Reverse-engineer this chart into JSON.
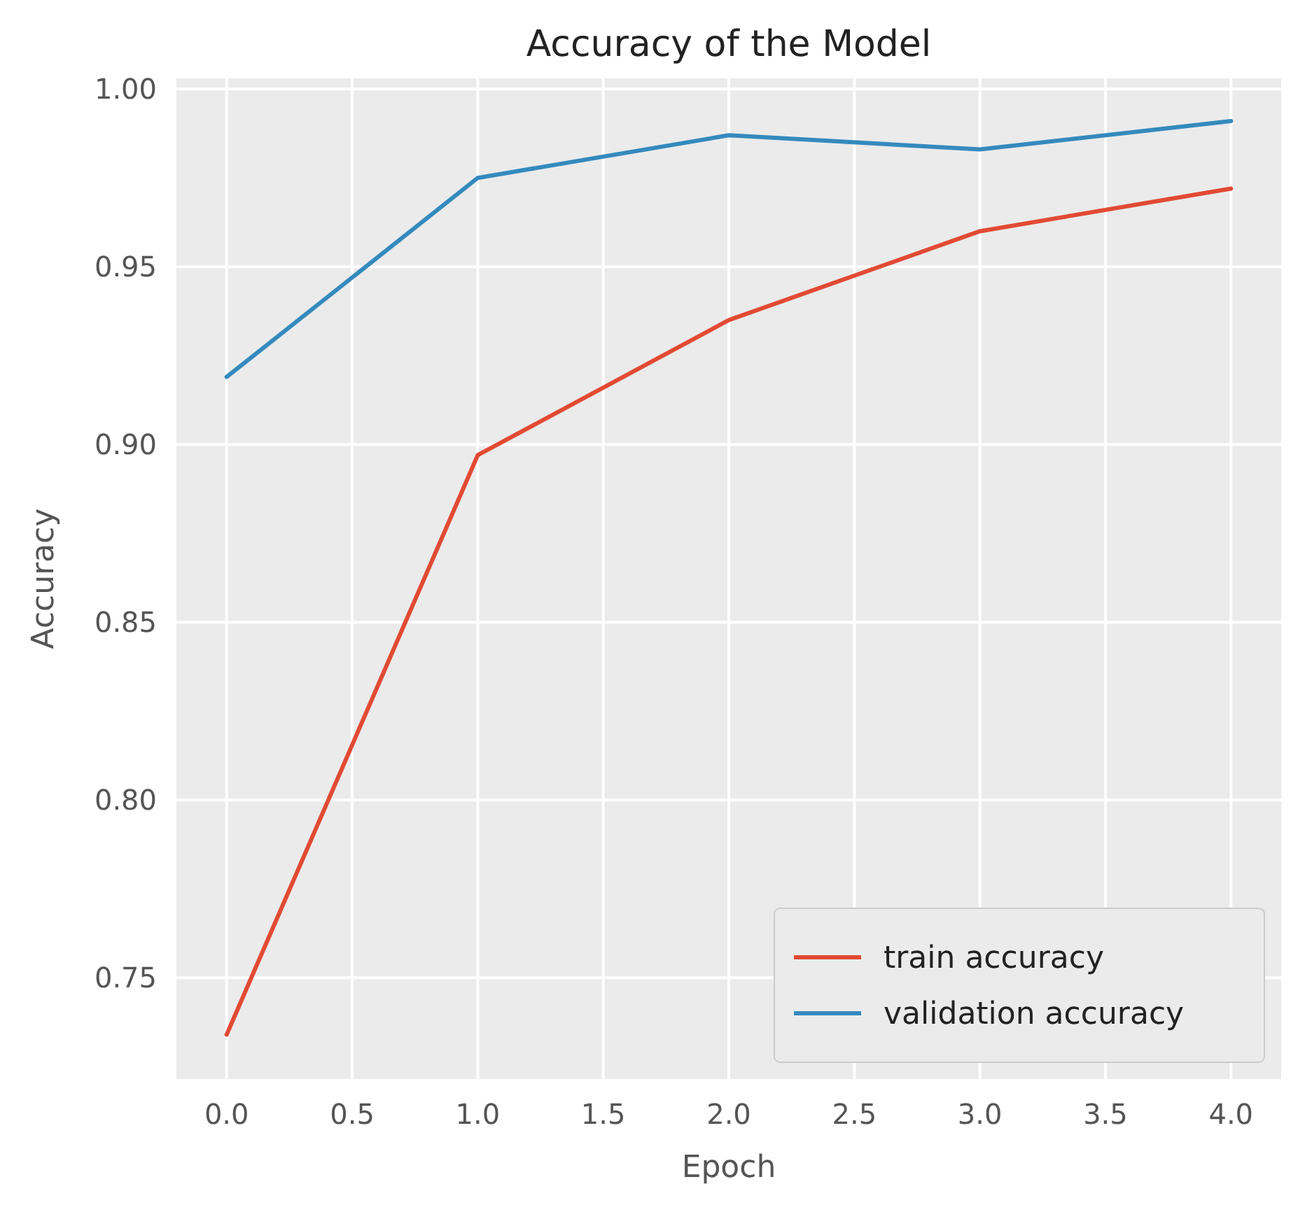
{
  "chart_data": {
    "type": "line",
    "title": "Accuracy of the Model",
    "xlabel": "Epoch",
    "ylabel": "Accuracy",
    "x": [
      0,
      1,
      2,
      3,
      4
    ],
    "series": [
      {
        "name": "train accuracy",
        "color": "#e24a33",
        "values": [
          0.734,
          0.897,
          0.935,
          0.96,
          0.972
        ]
      },
      {
        "name": "validation accuracy",
        "color": "#348abd",
        "values": [
          0.919,
          0.975,
          0.987,
          0.983,
          0.991
        ]
      }
    ],
    "xlim": [
      -0.2,
      4.2
    ],
    "xticks": [
      {
        "value": 0,
        "label": "0.0"
      },
      0.5,
      {
        "value": 1,
        "label": "1.0"
      },
      1.5,
      {
        "value": 2,
        "label": "2.0"
      },
      2.5,
      {
        "value": 3,
        "label": "3.0"
      },
      3.5,
      {
        "value": 4,
        "label": "4.0"
      }
    ],
    "ylim": [
      0.7215,
      1.003
    ],
    "yticks": [
      0.75,
      {
        "value": 0.8,
        "label": "0.80"
      },
      0.85,
      {
        "value": 0.9,
        "label": "0.90"
      },
      0.95,
      {
        "value": 1.0,
        "label": "1.00"
      }
    ],
    "grid": true,
    "legend": "bottom right",
    "line_style": "solid",
    "marker": "none"
  }
}
